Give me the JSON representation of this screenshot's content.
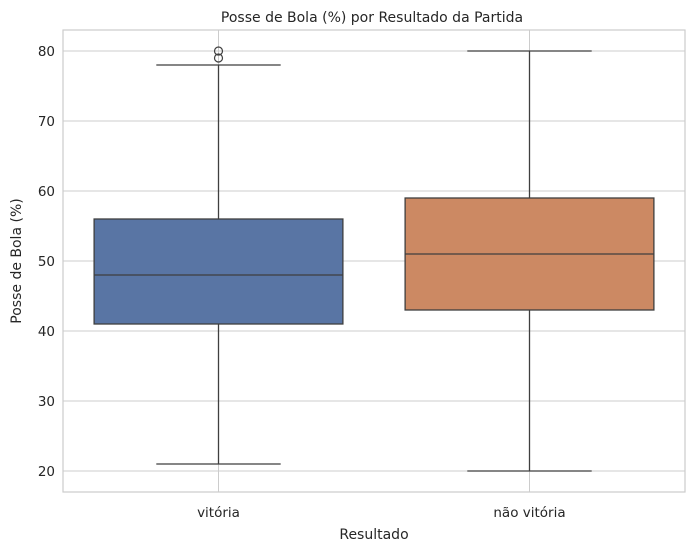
{
  "chart_data": {
    "type": "boxplot",
    "title": "Posse de Bola (%) por Resultado da Partida",
    "xlabel": "Resultado",
    "ylabel": "Posse de Bola (%)",
    "ylim": [
      17,
      83
    ],
    "yticks": [
      20,
      30,
      40,
      50,
      60,
      70,
      80
    ],
    "grid": true,
    "categories": [
      "vitória",
      "não vitória"
    ],
    "boxes": [
      {
        "category": "vitória",
        "whisker_low": 21,
        "q1": 41,
        "median": 48,
        "q3": 56,
        "whisker_high": 78,
        "outliers": [
          79,
          80
        ],
        "color": "#5975a4"
      },
      {
        "category": "não vitória",
        "whisker_low": 20,
        "q1": 43,
        "median": 51,
        "q3": 59,
        "whisker_high": 80,
        "outliers": [],
        "color": "#cc8963"
      }
    ]
  }
}
